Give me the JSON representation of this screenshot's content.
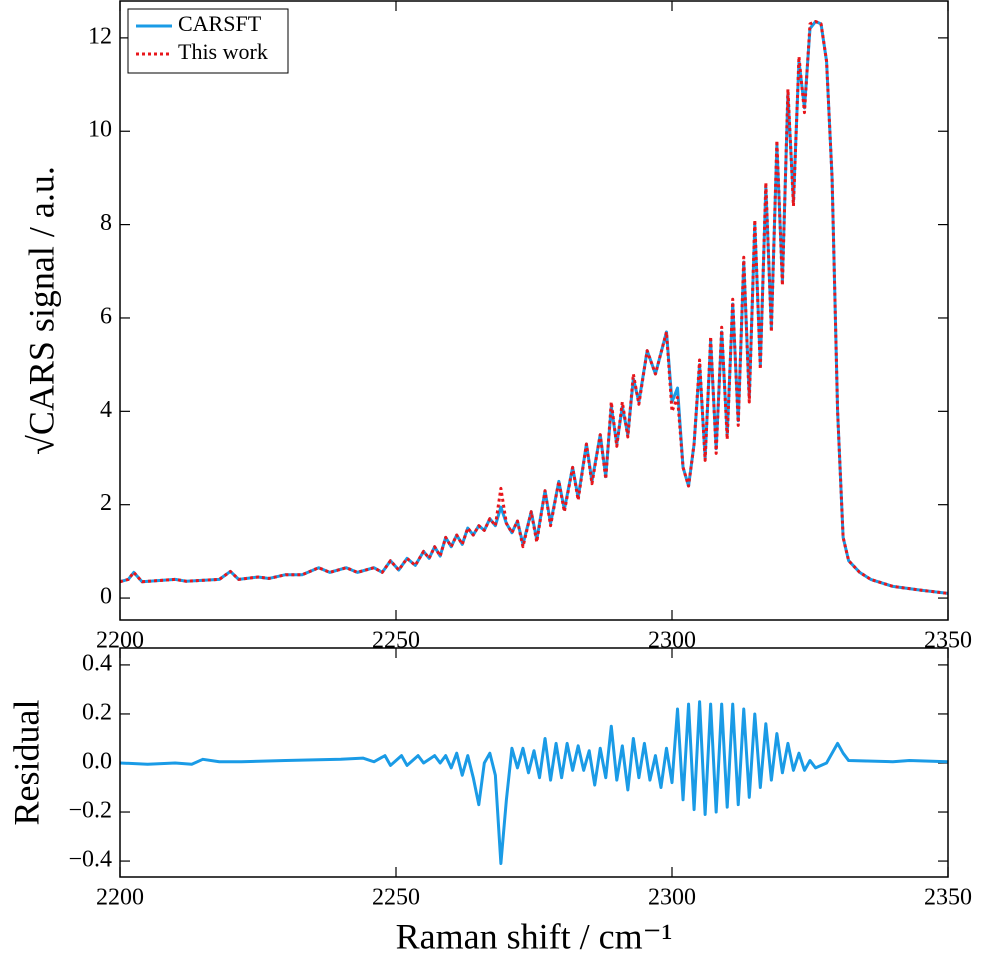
{
  "chart_data": [
    {
      "type": "line",
      "ylabel": "√CARS signal / a.u.",
      "legend": "upper left",
      "xlim": [
        2200,
        2350
      ],
      "xticks": [
        2200,
        2250,
        2300,
        2350
      ],
      "ylim": [
        -0.47,
        12.79
      ],
      "yticks": [
        0,
        2,
        4,
        6,
        8,
        10,
        12
      ],
      "x": [
        2200,
        2201.5,
        2202.5,
        2204,
        2210,
        2212,
        2218,
        2220,
        2221.5,
        2225,
        2227,
        2230,
        2233,
        2236,
        2238,
        2241,
        2243,
        2246,
        2247.5,
        2249,
        2250.5,
        2252,
        2253.5,
        2255,
        2256,
        2257,
        2258,
        2259,
        2260,
        2261,
        2262,
        2263,
        2264,
        2265,
        2266,
        2267,
        2268,
        2269,
        2270,
        2271,
        2272,
        2273,
        2274.5,
        2275.5,
        2277,
        2278,
        2279.5,
        2280.5,
        2282,
        2283,
        2284.5,
        2285.5,
        2287,
        2288,
        2289,
        2290,
        2291,
        2292,
        2293,
        2294,
        2295.5,
        2297,
        2299,
        2300,
        2301,
        2302,
        2303,
        2304,
        2305,
        2306,
        2307,
        2308,
        2309,
        2310,
        2311,
        2312,
        2313,
        2314,
        2315,
        2316,
        2317,
        2318,
        2319,
        2320,
        2321,
        2322,
        2323,
        2324,
        2325,
        2326,
        2327,
        2328,
        2329,
        2330,
        2331,
        2332,
        2334,
        2336,
        2340,
        2345,
        2350
      ],
      "series": [
        {
          "name": "CARSFT",
          "color": "#1a9be6",
          "linestyle": "solid",
          "values": [
            0.35,
            0.4,
            0.55,
            0.35,
            0.4,
            0.36,
            0.4,
            0.57,
            0.4,
            0.45,
            0.42,
            0.5,
            0.5,
            0.65,
            0.55,
            0.65,
            0.55,
            0.65,
            0.55,
            0.8,
            0.6,
            0.85,
            0.7,
            1.0,
            0.85,
            1.1,
            0.9,
            1.3,
            1.1,
            1.35,
            1.15,
            1.5,
            1.35,
            1.55,
            1.45,
            1.7,
            1.55,
            1.95,
            1.6,
            1.4,
            1.65,
            1.15,
            1.85,
            1.25,
            2.3,
            1.6,
            2.5,
            1.9,
            2.8,
            2.15,
            3.3,
            2.5,
            3.5,
            2.6,
            4.1,
            3.3,
            4.1,
            3.5,
            4.7,
            4.2,
            5.3,
            4.8,
            5.7,
            4.2,
            4.5,
            2.8,
            2.4,
            3.3,
            5.0,
            3.0,
            5.5,
            3.2,
            5.7,
            3.5,
            6.3,
            3.8,
            7.2,
            4.3,
            8.0,
            5.0,
            8.8,
            5.8,
            9.7,
            6.8,
            10.8,
            8.5,
            11.5,
            10.5,
            12.2,
            12.35,
            12.3,
            11.5,
            9,
            4,
            1.3,
            0.8,
            0.55,
            0.4,
            0.25,
            0.17,
            0.1
          ]
        },
        {
          "name": "This work",
          "color": "#e8161b",
          "linestyle": "dotted",
          "values": [
            0.35,
            0.4,
            0.55,
            0.35,
            0.4,
            0.36,
            0.4,
            0.57,
            0.4,
            0.45,
            0.42,
            0.5,
            0.5,
            0.65,
            0.55,
            0.65,
            0.55,
            0.65,
            0.55,
            0.8,
            0.6,
            0.85,
            0.7,
            1.0,
            0.85,
            1.1,
            0.9,
            1.3,
            1.1,
            1.35,
            1.15,
            1.5,
            1.35,
            1.55,
            1.45,
            1.7,
            1.55,
            2.35,
            1.6,
            1.4,
            1.65,
            1.1,
            1.85,
            1.2,
            2.3,
            1.55,
            2.5,
            1.85,
            2.8,
            2.1,
            3.3,
            2.45,
            3.5,
            2.55,
            4.2,
            3.25,
            4.2,
            3.45,
            4.8,
            4.15,
            5.3,
            4.8,
            5.7,
            4.0,
            4.3,
            2.8,
            2.4,
            3.3,
            5.1,
            2.95,
            5.6,
            3.1,
            5.8,
            3.4,
            6.4,
            3.7,
            7.3,
            4.2,
            8.1,
            4.9,
            8.9,
            5.7,
            9.8,
            6.7,
            10.9,
            8.4,
            11.6,
            10.4,
            12.3,
            12.35,
            12.3,
            11.5,
            9,
            4,
            1.3,
            0.8,
            0.55,
            0.4,
            0.25,
            0.17,
            0.1
          ]
        }
      ]
    },
    {
      "type": "line",
      "xlabel": "Raman shift / cm⁻¹",
      "ylabel": "Residual",
      "xlim": [
        2200,
        2350
      ],
      "xticks": [
        2200,
        2250,
        2300,
        2350
      ],
      "ylim": [
        -0.465,
        0.469
      ],
      "yticks": [
        {
          "value": -0.4,
          "label": "−0.4"
        },
        {
          "value": -0.2,
          "label": "−0.2"
        },
        {
          "value": 0,
          "label": "0.0"
        },
        0.2,
        0.4
      ],
      "x": [
        2200,
        2205,
        2210,
        2213,
        2215,
        2218,
        2222,
        2230,
        2240,
        2244,
        2246,
        2248,
        2249,
        2251,
        2252,
        2254,
        2255,
        2257,
        2258,
        2259,
        2260,
        2261,
        2262,
        2263,
        2264,
        2265,
        2266,
        2267,
        2268,
        2269,
        2270,
        2271,
        2272,
        2273,
        2274,
        2275,
        2276,
        2277,
        2278,
        2279,
        2280,
        2281,
        2282,
        2283,
        2284,
        2285,
        2286,
        2287,
        2288,
        2289,
        2290,
        2291,
        2292,
        2293,
        2294,
        2295,
        2296,
        2297,
        2298,
        2299,
        2300,
        2301,
        2302,
        2303,
        2304,
        2305,
        2306,
        2307,
        2308,
        2309,
        2310,
        2311,
        2312,
        2313,
        2314,
        2315,
        2316,
        2317,
        2318,
        2319,
        2320,
        2321,
        2322,
        2323,
        2324,
        2325,
        2326,
        2328,
        2330,
        2331,
        2332,
        2340,
        2343,
        2350
      ],
      "series": [
        {
          "color": "#1a9be6",
          "linestyle": "solid",
          "values": [
            0.0,
            -0.005,
            0.0,
            -0.005,
            0.015,
            0.005,
            0.005,
            0.01,
            0.015,
            0.02,
            0.005,
            0.03,
            -0.01,
            0.03,
            -0.01,
            0.03,
            0.0,
            0.03,
            0.0,
            0.03,
            -0.02,
            0.04,
            -0.05,
            0.03,
            -0.06,
            -0.17,
            0.0,
            0.04,
            -0.05,
            -0.41,
            -0.15,
            0.06,
            -0.02,
            0.06,
            -0.04,
            0.05,
            -0.06,
            0.1,
            -0.07,
            0.08,
            -0.06,
            0.08,
            -0.03,
            0.07,
            -0.03,
            0.05,
            -0.09,
            0.06,
            -0.06,
            0.15,
            -0.07,
            0.07,
            -0.11,
            0.1,
            -0.06,
            0.08,
            -0.07,
            0.03,
            -0.1,
            0.06,
            -0.08,
            0.22,
            -0.15,
            0.24,
            -0.19,
            0.25,
            -0.21,
            0.24,
            -0.2,
            0.24,
            -0.18,
            0.24,
            -0.17,
            0.22,
            -0.14,
            0.2,
            -0.1,
            0.16,
            -0.07,
            0.12,
            -0.04,
            0.08,
            -0.03,
            0.04,
            -0.03,
            0.01,
            -0.02,
            0.0,
            0.08,
            0.04,
            0.01,
            0.005,
            0.01,
            0.005
          ]
        }
      ]
    }
  ]
}
